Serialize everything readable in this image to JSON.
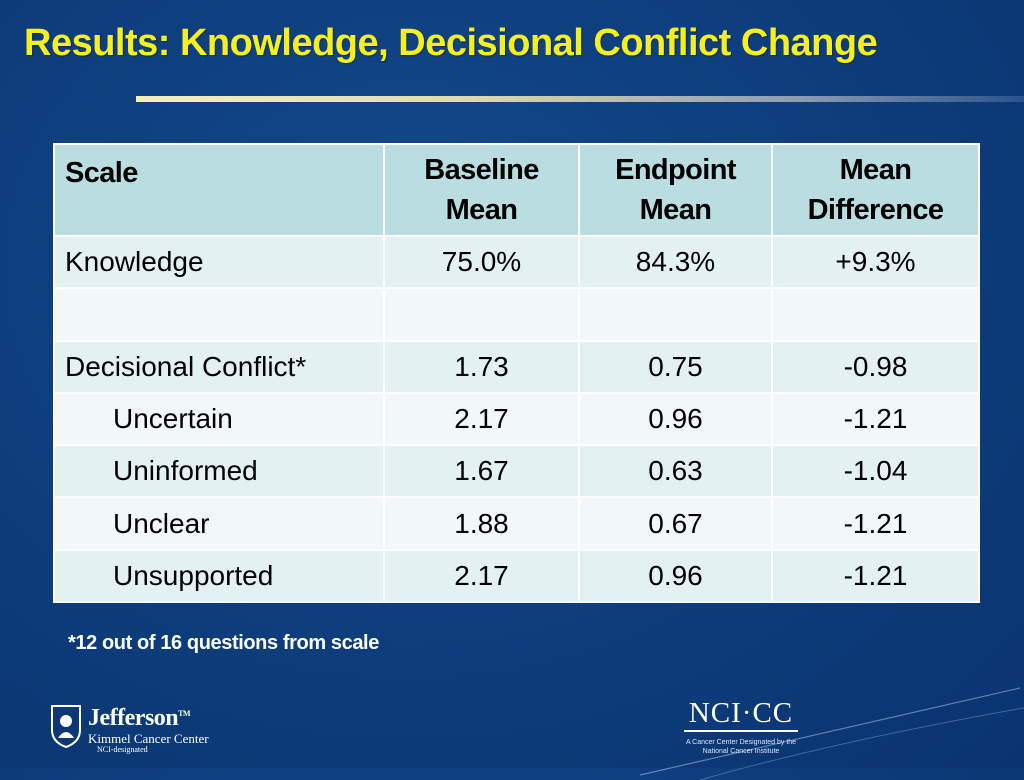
{
  "slide": {
    "title": "Results: Knowledge, Decisional Conflict Change",
    "footnote": "*12 out of 16 questions from scale"
  },
  "table": {
    "headers": [
      "Scale",
      "Baseline Mean",
      "Endpoint Mean",
      "Mean Difference"
    ],
    "rows": [
      {
        "label": "Knowledge",
        "baseline": "75.0%",
        "endpoint": "84.3%",
        "difference": "+9.3%"
      },
      {
        "label": "",
        "baseline": "",
        "endpoint": "",
        "difference": ""
      },
      {
        "label": "Decisional Conflict*",
        "baseline": "1.73",
        "endpoint": "0.75",
        "difference": "-0.98"
      },
      {
        "label": "Uncertain",
        "baseline": "2.17",
        "endpoint": "0.96",
        "difference": "-1.21"
      },
      {
        "label": "Uninformed",
        "baseline": "1.67",
        "endpoint": "0.63",
        "difference": "-1.04"
      },
      {
        "label": "Unclear",
        "baseline": "1.88",
        "endpoint": "0.67",
        "difference": "-1.21"
      },
      {
        "label": "Unsupported",
        "baseline": "2.17",
        "endpoint": "0.96",
        "difference": "-1.21"
      }
    ]
  },
  "logos": {
    "jefferson": {
      "name": "Jefferson",
      "trademark": "TM",
      "subtitle": "Kimmel Cancer Center",
      "subtitle2": "NCI-designated"
    },
    "ncicc": {
      "mark": "NCI·CC",
      "tagline_line1": "A Cancer Center Designated by the",
      "tagline_line2": "National Cancer Institute"
    }
  },
  "colors": {
    "background": "#0e3f7e",
    "title": "#f5ef1d",
    "header_fill": "#b9dde1",
    "row_fill_odd": "#e4f1f3",
    "row_fill_even": "#f2f8f9"
  }
}
